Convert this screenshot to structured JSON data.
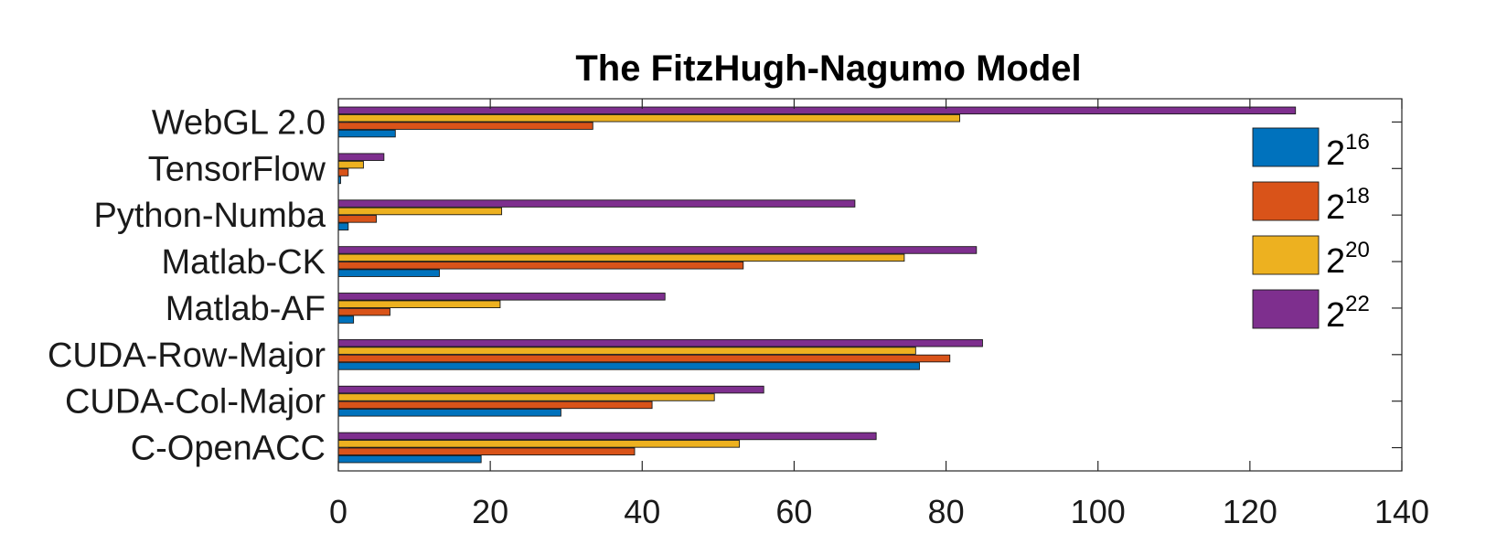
{
  "chart_data": {
    "type": "bar",
    "orientation": "horizontal",
    "title": "The FitzHugh-Nagumo Model",
    "categories": [
      "WebGL 2.0",
      "TensorFlow",
      "Python-Numba",
      "Matlab-CK",
      "Matlab-AF",
      "CUDA-Row-Major",
      "CUDA-Col-Major",
      "C-OpenACC"
    ],
    "series": [
      {
        "name": "2^16",
        "label_base": "2",
        "label_exp": "16",
        "color": "#0072BD",
        "values": [
          7.5,
          0.3,
          1.3,
          13.3,
          2.0,
          76.5,
          29.3,
          18.8
        ]
      },
      {
        "name": "2^18",
        "label_base": "2",
        "label_exp": "18",
        "color": "#D95319",
        "values": [
          33.5,
          1.3,
          5.0,
          53.3,
          6.8,
          80.5,
          41.3,
          39.0
        ]
      },
      {
        "name": "2^20",
        "label_base": "2",
        "label_exp": "20",
        "color": "#EDB120",
        "values": [
          81.8,
          3.3,
          21.5,
          74.5,
          21.3,
          76.0,
          49.5,
          52.8
        ]
      },
      {
        "name": "2^22",
        "label_base": "2",
        "label_exp": "22",
        "color": "#7E2F8E",
        "values": [
          126.0,
          6.0,
          68.0,
          84.0,
          43.0,
          84.8,
          56.0,
          70.8
        ]
      }
    ],
    "xlim": [
      0,
      140
    ],
    "xticks": [
      "0",
      "20",
      "40",
      "60",
      "80",
      "100",
      "120",
      "140"
    ],
    "xlabel": "",
    "ylabel": "",
    "legend_position": "top-right",
    "grid": false
  }
}
